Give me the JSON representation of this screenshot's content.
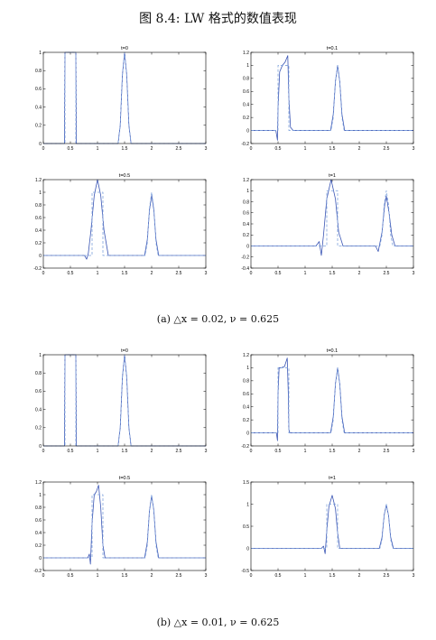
{
  "figure": {
    "title": "图 8.4: LW 格式的数值表现",
    "caption_a": "(a) △x = 0.02, ν = 0.625",
    "caption_b": "(b) △x = 0.01, ν = 0.625"
  },
  "colors": {
    "numerical": "#3a55b4",
    "exact": "#7fa3dd",
    "axis": "#000000"
  },
  "chart_data": [
    {
      "group": "a",
      "type": "line",
      "title": "t=0",
      "xlim": [
        0,
        3
      ],
      "ylim": [
        0,
        1
      ],
      "xticks": [
        0,
        0.5,
        1,
        1.5,
        2,
        2.5,
        3
      ],
      "yticks": [
        0,
        0.2,
        0.4,
        0.6,
        0.8,
        1
      ],
      "series": [
        {
          "style": "solid",
          "x": [
            0,
            0.39,
            0.4,
            0.6,
            0.61,
            1.38,
            1.42,
            1.46,
            1.5,
            1.54,
            1.58,
            1.62,
            3
          ],
          "y": [
            0,
            0,
            1,
            1,
            0,
            0,
            0.2,
            0.75,
            1,
            0.75,
            0.2,
            0,
            0
          ]
        },
        {
          "style": "dashed",
          "x": [
            0,
            0.4,
            0.4,
            0.6,
            0.6,
            1.38,
            1.42,
            1.46,
            1.5,
            1.54,
            1.58,
            1.62,
            3
          ],
          "y": [
            0,
            0,
            1,
            1,
            0,
            0,
            0.2,
            0.75,
            1,
            0.75,
            0.2,
            0,
            0
          ]
        }
      ]
    },
    {
      "group": "a",
      "type": "line",
      "title": "t=0.1",
      "xlim": [
        0,
        3
      ],
      "ylim": [
        -0.2,
        1.2
      ],
      "xticks": [
        0,
        0.5,
        1,
        1.5,
        2,
        2.5,
        3
      ],
      "yticks": [
        -0.2,
        0,
        0.2,
        0.4,
        0.6,
        0.8,
        1,
        1.2
      ],
      "series": [
        {
          "style": "solid",
          "x": [
            0,
            0.46,
            0.49,
            0.5,
            0.53,
            0.58,
            0.63,
            0.68,
            0.7,
            0.73,
            0.78,
            1.47,
            1.52,
            1.56,
            1.6,
            1.64,
            1.68,
            1.73,
            3
          ],
          "y": [
            0,
            0,
            -0.15,
            0.35,
            0.9,
            1.0,
            1.05,
            1.15,
            0.5,
            0.05,
            0,
            0,
            0.25,
            0.75,
            1,
            0.75,
            0.25,
            0,
            0
          ]
        },
        {
          "style": "dashed",
          "x": [
            0,
            0.5,
            0.5,
            0.7,
            0.7,
            1.48,
            1.52,
            1.56,
            1.6,
            1.64,
            1.68,
            1.72,
            3
          ],
          "y": [
            0,
            0,
            1,
            1,
            0,
            0,
            0.2,
            0.75,
            1,
            0.75,
            0.2,
            0,
            0
          ]
        }
      ]
    },
    {
      "group": "a",
      "type": "line",
      "title": "t=0.5",
      "xlim": [
        0,
        3
      ],
      "ylim": [
        -0.2,
        1.2
      ],
      "xticks": [
        0,
        0.5,
        1,
        1.5,
        2,
        2.5,
        3
      ],
      "yticks": [
        -0.2,
        0,
        0.2,
        0.4,
        0.6,
        0.8,
        1,
        1.2
      ],
      "series": [
        {
          "style": "solid",
          "x": [
            0,
            0.76,
            0.8,
            0.83,
            0.88,
            0.94,
            1.0,
            1.06,
            1.12,
            1.2,
            1.87,
            1.92,
            1.96,
            2.0,
            2.04,
            2.08,
            2.13,
            3
          ],
          "y": [
            0,
            0,
            -0.06,
            0.03,
            0.4,
            0.95,
            1.2,
            0.95,
            0.4,
            0,
            0,
            0.25,
            0.72,
            0.95,
            0.72,
            0.25,
            0,
            0
          ]
        },
        {
          "style": "dashed",
          "x": [
            0,
            0.9,
            0.9,
            1.1,
            1.1,
            1.88,
            1.92,
            1.96,
            2.0,
            2.04,
            2.08,
            2.12,
            3
          ],
          "y": [
            0,
            0,
            1,
            1,
            0,
            0,
            0.2,
            0.75,
            1,
            0.75,
            0.2,
            0,
            0
          ]
        }
      ]
    },
    {
      "group": "a",
      "type": "line",
      "title": "t=1",
      "xlim": [
        0,
        3
      ],
      "ylim": [
        -0.4,
        1.2
      ],
      "xticks": [
        0,
        0.5,
        1,
        1.5,
        2,
        2.5,
        3
      ],
      "yticks": [
        -0.4,
        -0.2,
        0,
        0.2,
        0.4,
        0.6,
        0.8,
        1,
        1.2
      ],
      "series": [
        {
          "style": "solid",
          "x": [
            0,
            1.2,
            1.26,
            1.3,
            1.34,
            1.4,
            1.48,
            1.56,
            1.62,
            1.7,
            2.3,
            2.35,
            2.42,
            2.47,
            2.5,
            2.55,
            2.6,
            2.66,
            3
          ],
          "y": [
            0,
            0,
            0.08,
            -0.17,
            0.2,
            0.85,
            1.2,
            0.85,
            0.25,
            0,
            0,
            -0.1,
            0.25,
            0.75,
            0.9,
            0.6,
            0.2,
            0,
            0
          ]
        },
        {
          "style": "dashed",
          "x": [
            0,
            1.4,
            1.4,
            1.6,
            1.6,
            2.38,
            2.42,
            2.46,
            2.5,
            2.54,
            2.58,
            2.62,
            3
          ],
          "y": [
            0,
            0,
            1,
            1,
            0,
            0,
            0.2,
            0.75,
            1,
            0.75,
            0.2,
            0,
            0
          ]
        }
      ]
    },
    {
      "group": "b",
      "type": "line",
      "title": "t=0",
      "xlim": [
        0,
        3
      ],
      "ylim": [
        0,
        1
      ],
      "xticks": [
        0,
        0.5,
        1,
        1.5,
        2,
        2.5,
        3
      ],
      "yticks": [
        0,
        0.2,
        0.4,
        0.6,
        0.8,
        1
      ],
      "series": [
        {
          "style": "solid",
          "x": [
            0,
            0.39,
            0.4,
            0.6,
            0.61,
            1.38,
            1.42,
            1.46,
            1.5,
            1.54,
            1.58,
            1.62,
            3
          ],
          "y": [
            0,
            0,
            1,
            1,
            0,
            0,
            0.2,
            0.75,
            1,
            0.75,
            0.2,
            0,
            0
          ]
        },
        {
          "style": "dashed",
          "x": [
            0,
            0.4,
            0.4,
            0.6,
            0.6,
            1.38,
            1.42,
            1.46,
            1.5,
            1.54,
            1.58,
            1.62,
            3
          ],
          "y": [
            0,
            0,
            1,
            1,
            0,
            0,
            0.2,
            0.75,
            1,
            0.75,
            0.2,
            0,
            0
          ]
        }
      ]
    },
    {
      "group": "b",
      "type": "line",
      "title": "t=0.1",
      "xlim": [
        0,
        3
      ],
      "ylim": [
        -0.2,
        1.2
      ],
      "xticks": [
        0,
        0.5,
        1,
        1.5,
        2,
        2.5,
        3
      ],
      "yticks": [
        -0.2,
        0,
        0.2,
        0.4,
        0.6,
        0.8,
        1,
        1.2
      ],
      "series": [
        {
          "style": "solid",
          "x": [
            0,
            0.47,
            0.49,
            0.5,
            0.52,
            0.56,
            0.62,
            0.67,
            0.69,
            0.7,
            0.72,
            1.47,
            1.52,
            1.56,
            1.6,
            1.64,
            1.68,
            1.73,
            3
          ],
          "y": [
            0,
            0,
            -0.12,
            0.6,
            1.0,
            1.0,
            1.02,
            1.15,
            0.6,
            0.05,
            0,
            0,
            0.25,
            0.75,
            1,
            0.75,
            0.25,
            0,
            0
          ]
        },
        {
          "style": "dashed",
          "x": [
            0,
            0.5,
            0.5,
            0.7,
            0.7,
            1.48,
            1.52,
            1.56,
            1.6,
            1.64,
            1.68,
            1.72,
            3
          ],
          "y": [
            0,
            0,
            1,
            1,
            0,
            0,
            0.2,
            0.75,
            1,
            0.75,
            0.2,
            0,
            0
          ]
        }
      ]
    },
    {
      "group": "b",
      "type": "line",
      "title": "t=0.5",
      "xlim": [
        0,
        3
      ],
      "ylim": [
        -0.2,
        1.2
      ],
      "xticks": [
        0,
        0.5,
        1,
        1.5,
        2,
        2.5,
        3
      ],
      "yticks": [
        -0.2,
        0,
        0.2,
        0.4,
        0.6,
        0.8,
        1,
        1.2
      ],
      "series": [
        {
          "style": "solid",
          "x": [
            0,
            0.82,
            0.85,
            0.87,
            0.9,
            0.94,
            0.98,
            1.02,
            1.06,
            1.1,
            1.14,
            1.87,
            1.92,
            1.96,
            2.0,
            2.04,
            2.08,
            2.13,
            3
          ],
          "y": [
            0,
            0,
            0.06,
            -0.1,
            0.55,
            1.0,
            1.05,
            1.15,
            0.8,
            0.2,
            0,
            0,
            0.25,
            0.75,
            0.98,
            0.75,
            0.25,
            0,
            0
          ]
        },
        {
          "style": "dashed",
          "x": [
            0,
            0.9,
            0.9,
            1.1,
            1.1,
            1.88,
            1.92,
            1.96,
            2.0,
            2.04,
            2.08,
            2.12,
            3
          ],
          "y": [
            0,
            0,
            1,
            1,
            0,
            0,
            0.2,
            0.75,
            1,
            0.75,
            0.2,
            0,
            0
          ]
        }
      ]
    },
    {
      "group": "b",
      "type": "line",
      "title": "t=1",
      "xlim": [
        0,
        3
      ],
      "ylim": [
        -0.5,
        1.5
      ],
      "xticks": [
        0,
        0.5,
        1,
        1.5,
        2,
        2.5,
        3
      ],
      "yticks": [
        -0.5,
        0,
        0.5,
        1,
        1.5
      ],
      "series": [
        {
          "style": "solid",
          "x": [
            0,
            1.3,
            1.34,
            1.37,
            1.4,
            1.44,
            1.5,
            1.56,
            1.6,
            1.64,
            2.37,
            2.42,
            2.46,
            2.5,
            2.54,
            2.58,
            2.63,
            3
          ],
          "y": [
            0,
            0,
            0.05,
            -0.12,
            0.4,
            0.95,
            1.2,
            0.9,
            0.35,
            0,
            0,
            0.25,
            0.75,
            0.98,
            0.75,
            0.25,
            0,
            0
          ]
        },
        {
          "style": "dashed",
          "x": [
            0,
            1.4,
            1.4,
            1.6,
            1.6,
            2.38,
            2.42,
            2.46,
            2.5,
            2.54,
            2.58,
            2.62,
            3
          ],
          "y": [
            0,
            0,
            1,
            1,
            0,
            0,
            0.2,
            0.75,
            1,
            0.75,
            0.2,
            0,
            0
          ]
        }
      ]
    }
  ]
}
